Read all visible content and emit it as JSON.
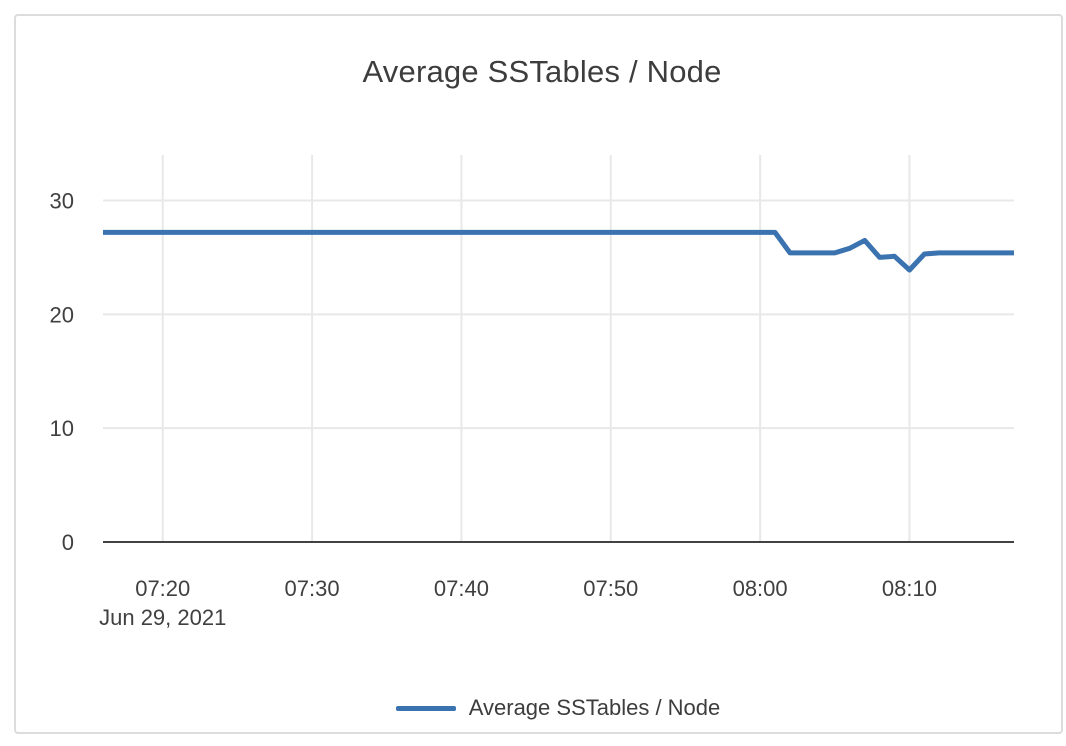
{
  "chart_data": {
    "type": "line",
    "title": "Average SSTables / Node",
    "x_date_label": "Jun 29, 2021",
    "x_ticks": [
      "07:20",
      "07:30",
      "07:40",
      "07:50",
      "08:00",
      "08:10"
    ],
    "y_ticks": [
      0,
      10,
      20,
      30
    ],
    "ylim": [
      0,
      34
    ],
    "x_start": "07:16",
    "x_end": "08:17",
    "x_interval_minutes": 1,
    "grid": true,
    "legend_position": "bottom",
    "series": [
      {
        "name": "Average SSTables / Node",
        "color": "#3b73b0",
        "values": [
          27.2,
          27.2,
          27.2,
          27.2,
          27.2,
          27.2,
          27.2,
          27.2,
          27.2,
          27.2,
          27.2,
          27.2,
          27.2,
          27.2,
          27.2,
          27.2,
          27.2,
          27.2,
          27.2,
          27.2,
          27.2,
          27.2,
          27.2,
          27.2,
          27.2,
          27.2,
          27.2,
          27.2,
          27.2,
          27.2,
          27.2,
          27.2,
          27.2,
          27.2,
          27.2,
          27.2,
          27.2,
          27.2,
          27.2,
          27.2,
          27.2,
          27.2,
          27.2,
          27.2,
          27.2,
          27.2,
          25.4,
          25.4,
          25.4,
          25.4,
          25.8,
          26.5,
          25.0,
          25.1,
          23.9,
          25.3,
          25.4,
          25.4,
          25.4,
          25.4,
          25.4,
          25.4
        ]
      }
    ],
    "colors": {
      "line": "#3b73b0",
      "grid": "#e8e8e8",
      "axis": "#424242",
      "text": "#404040",
      "card_border": "#dcdcdc"
    }
  }
}
